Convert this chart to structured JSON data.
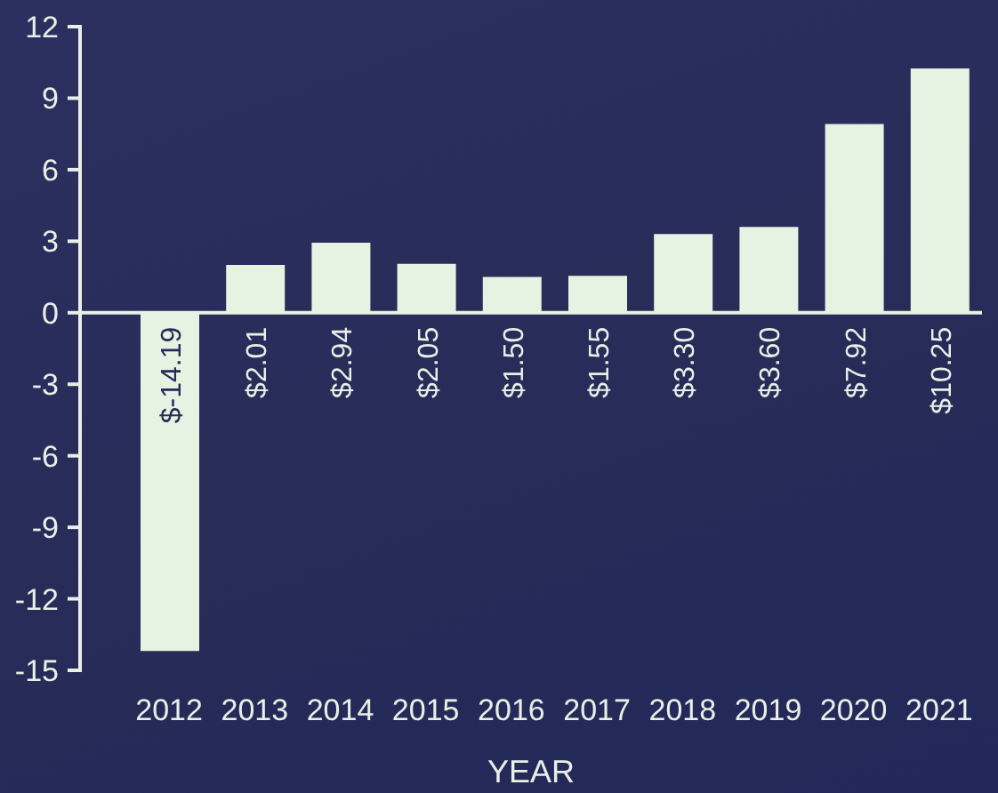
{
  "chart_data": {
    "type": "bar",
    "xlabel": "YEAR",
    "categories": [
      "2012",
      "2013",
      "2014",
      "2015",
      "2016",
      "2017",
      "2018",
      "2019",
      "2020",
      "2021"
    ],
    "values": [
      -14.19,
      2.01,
      2.94,
      2.05,
      1.5,
      1.55,
      3.3,
      3.6,
      7.92,
      10.25
    ],
    "value_labels": [
      "$-14.19",
      "$2.01",
      "$2.94",
      "$2.05",
      "$1.50",
      "$1.55",
      "$3.30",
      "$3.60",
      "$7.92",
      "$10.25"
    ],
    "color": "#e6f2e2",
    "ylim": [
      -15,
      12
    ],
    "yticks": [
      -15,
      -12,
      -9,
      -6,
      -3,
      0,
      3,
      6,
      9,
      12
    ],
    "ref_lines": [
      {
        "axis": "y",
        "value": 0,
        "color": "#e6f2e2"
      }
    ],
    "grid": false,
    "legend": false
  }
}
